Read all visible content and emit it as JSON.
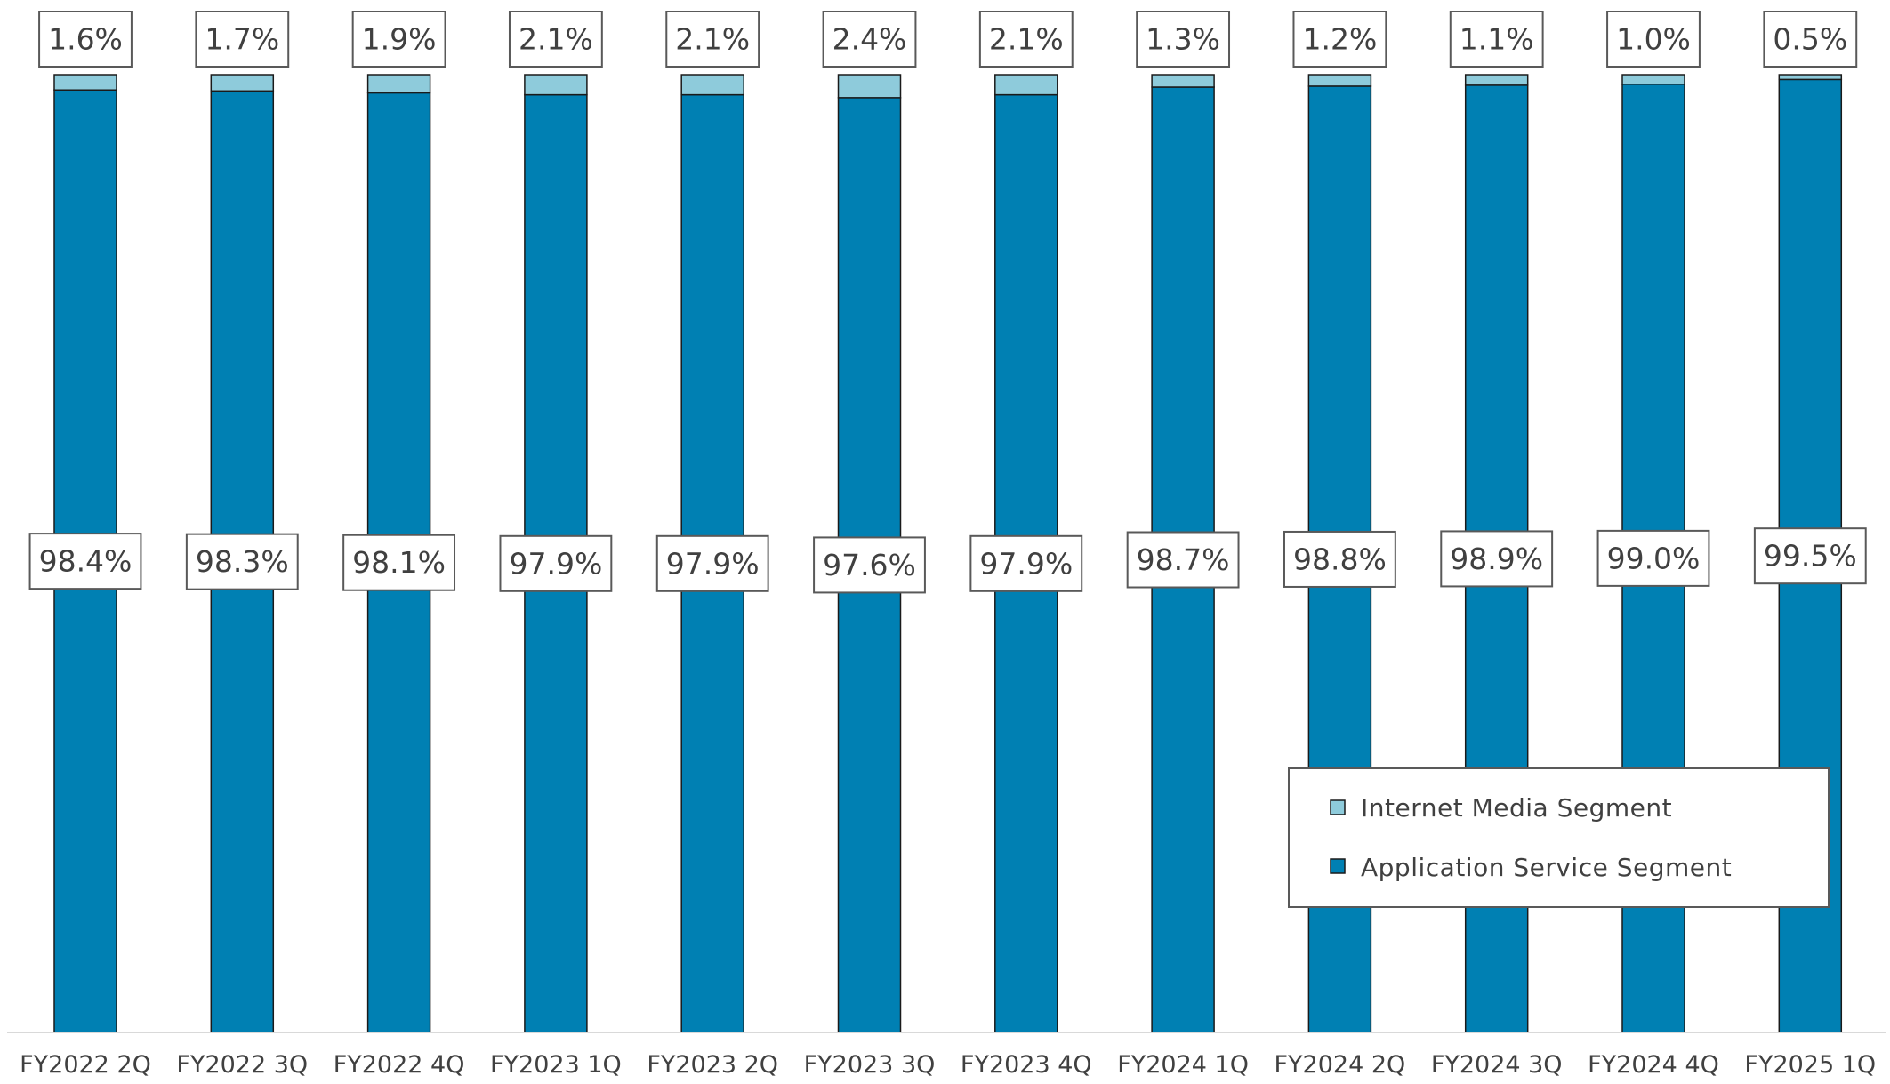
{
  "chart_data": {
    "type": "bar",
    "stacked": true,
    "categories": [
      "FY2022 2Q",
      "FY2022 3Q",
      "FY2022 4Q",
      "FY2023 1Q",
      "FY2023 2Q",
      "FY2023 3Q",
      "FY2023 4Q",
      "FY2024 1Q",
      "FY2024 2Q",
      "FY2024 3Q",
      "FY2024 4Q",
      "FY2025 1Q"
    ],
    "series": [
      {
        "name": "Application Service Segment",
        "values": [
          98.4,
          98.3,
          98.1,
          97.9,
          97.9,
          97.6,
          97.9,
          98.7,
          98.8,
          98.9,
          99.0,
          99.5
        ],
        "labels": [
          "98.4%",
          "98.3%",
          "98.1%",
          "97.9%",
          "97.9%",
          "97.6%",
          "97.9%",
          "98.7%",
          "98.8%",
          "98.9%",
          "99.0%",
          "99.5%"
        ],
        "color": "#0080b3"
      },
      {
        "name": "Internet Media Segment",
        "values": [
          1.6,
          1.7,
          1.9,
          2.1,
          2.1,
          2.4,
          2.1,
          1.3,
          1.2,
          1.1,
          1.0,
          0.5
        ],
        "labels": [
          "1.6%",
          "1.7%",
          "1.9%",
          "2.1%",
          "2.1%",
          "2.4%",
          "2.1%",
          "1.3%",
          "1.2%",
          "1.1%",
          "1.0%",
          "0.5%"
        ],
        "color": "#8ecbdb"
      }
    ],
    "ylim": [
      0,
      100
    ],
    "grid": false,
    "legend": {
      "position": "bottom-right",
      "entries": [
        "Internet Media Segment",
        "Application Service Segment"
      ]
    }
  }
}
